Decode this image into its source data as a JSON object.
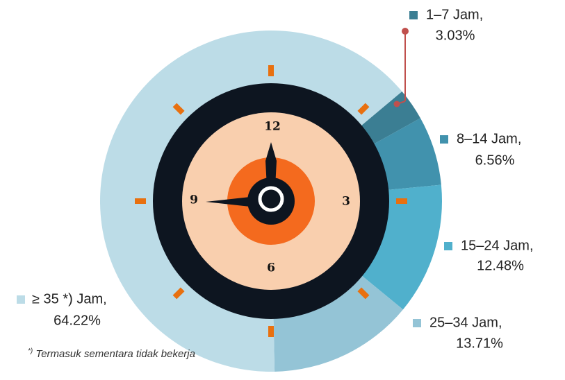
{
  "chart_data": {
    "type": "pie",
    "categories": [
      "1–7 Jam,",
      "8–14 Jam,",
      "15–24 Jam,",
      "25–34 Jam,",
      "≥ 35 *) Jam,"
    ],
    "values": [
      3.03,
      6.56,
      12.48,
      13.71,
      64.22
    ],
    "value_labels": [
      "3.03%",
      "6.56%",
      "12.48%",
      "13.71%",
      "64.22%"
    ],
    "colors": [
      "#3b7e93",
      "#4192ad",
      "#50b0cc",
      "#94c4d6",
      "#bcdce7"
    ],
    "clock_labels": [
      "12",
      "3",
      "6",
      "9"
    ],
    "note_marker": "*)",
    "note": "Termasuk sementara tidak bekerja"
  }
}
